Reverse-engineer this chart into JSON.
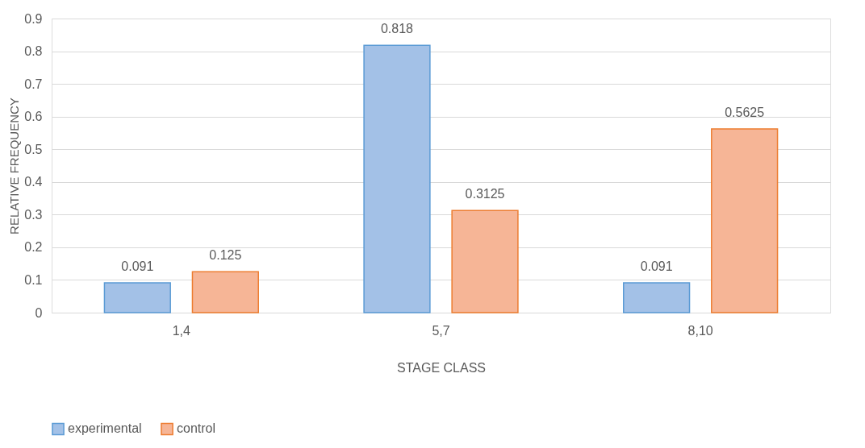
{
  "chart_data": {
    "type": "bar",
    "xlabel": "STAGE CLASS",
    "ylabel": "RELATIVE FREQUENCY",
    "categories": [
      "1,4",
      "5,7",
      "8,10"
    ],
    "series": [
      {
        "name": "experimental",
        "color": "#a3c1e7",
        "values": [
          0.091,
          0.818,
          0.091
        ]
      },
      {
        "name": "control",
        "color": "#f6b596",
        "values": [
          0.125,
          0.3125,
          0.5625
        ]
      }
    ],
    "ylim": [
      0,
      0.9
    ],
    "yticks": [
      0,
      0.1,
      0.2,
      0.3,
      0.4,
      0.5,
      0.6,
      0.7,
      0.8,
      0.9
    ],
    "grid": "y",
    "legend": "bottom",
    "data_labels": true
  }
}
